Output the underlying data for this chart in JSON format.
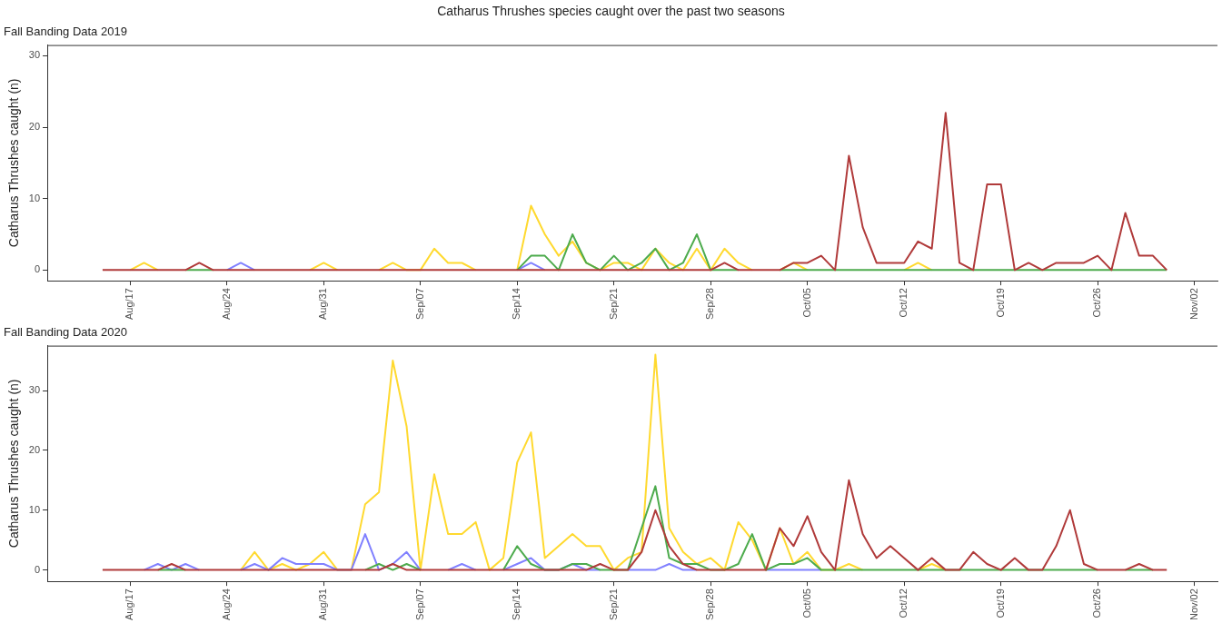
{
  "chart_data": [
    {
      "type": "line",
      "title": "Catharus Thrushes species caught over the past two seasons",
      "subtitle": "Fall Banding Data 2019",
      "ylabel": "Catharus Thrushes caught (n)",
      "x": [
        "2019-08-15",
        "2019-08-16",
        "2019-08-17",
        "2019-08-18",
        "2019-08-19",
        "2019-08-20",
        "2019-08-21",
        "2019-08-22",
        "2019-08-23",
        "2019-08-24",
        "2019-08-25",
        "2019-08-26",
        "2019-08-27",
        "2019-08-28",
        "2019-08-29",
        "2019-08-30",
        "2019-08-31",
        "2019-09-01",
        "2019-09-02",
        "2019-09-03",
        "2019-09-04",
        "2019-09-05",
        "2019-09-06",
        "2019-09-07",
        "2019-09-08",
        "2019-09-09",
        "2019-09-10",
        "2019-09-11",
        "2019-09-12",
        "2019-09-13",
        "2019-09-14",
        "2019-09-15",
        "2019-09-16",
        "2019-09-17",
        "2019-09-18",
        "2019-09-19",
        "2019-09-20",
        "2019-09-21",
        "2019-09-22",
        "2019-09-23",
        "2019-09-24",
        "2019-09-25",
        "2019-09-26",
        "2019-09-27",
        "2019-09-28",
        "2019-09-29",
        "2019-09-30",
        "2019-10-01",
        "2019-10-02",
        "2019-10-03",
        "2019-10-04",
        "2019-10-05",
        "2019-10-06",
        "2019-10-07",
        "2019-10-08",
        "2019-10-09",
        "2019-10-10",
        "2019-10-11",
        "2019-10-12",
        "2019-10-13",
        "2019-10-14",
        "2019-10-15",
        "2019-10-16",
        "2019-10-17",
        "2019-10-18",
        "2019-10-19",
        "2019-10-20",
        "2019-10-21",
        "2019-10-22",
        "2019-10-23",
        "2019-10-24",
        "2019-10-25",
        "2019-10-26",
        "2019-10-27",
        "2019-10-28",
        "2019-10-29",
        "2019-10-30",
        "2019-10-31"
      ],
      "xlim": [
        "2019-08-11",
        "2019-11-03T16:00"
      ],
      "xticks": [
        {
          "value": "2019-08-17",
          "label": "Aug/17"
        },
        {
          "value": "2019-08-24",
          "label": "Aug/24"
        },
        {
          "value": "2019-08-31",
          "label": "Aug/31"
        },
        {
          "value": "2019-09-07",
          "label": "Sep/07"
        },
        {
          "value": "2019-09-14",
          "label": "Sep/14"
        },
        {
          "value": "2019-09-21",
          "label": "Sep/21"
        },
        {
          "value": "2019-09-28",
          "label": "Sep/28"
        },
        {
          "value": "2019-10-05",
          "label": "Oct/05"
        },
        {
          "value": "2019-10-12",
          "label": "Oct/12"
        },
        {
          "value": "2019-10-19",
          "label": "Oct/19"
        },
        {
          "value": "2019-10-26",
          "label": "Oct/26"
        },
        {
          "value": "2019-11-02",
          "label": "Nov/02"
        }
      ],
      "ylim": [
        -1.5,
        31.5
      ],
      "yticks": [
        0,
        10,
        20,
        30
      ],
      "grid": false,
      "legend": false,
      "series": [
        {
          "color": "#ffd92f",
          "values": [
            null,
            null,
            0,
            1,
            0,
            null,
            null,
            null,
            null,
            null,
            null,
            null,
            null,
            null,
            null,
            0,
            1,
            0,
            null,
            null,
            0,
            1,
            0,
            0,
            3,
            1,
            1,
            0,
            null,
            null,
            0,
            9,
            5,
            2,
            4,
            1,
            0,
            1,
            1,
            0,
            3,
            1,
            0,
            3,
            0,
            3,
            1,
            0,
            null,
            0,
            1,
            0,
            null,
            null,
            null,
            null,
            null,
            null,
            0,
            1,
            0,
            null,
            null,
            null,
            null,
            null,
            null,
            null,
            null,
            null,
            null,
            null,
            null,
            null,
            null,
            null,
            null,
            null
          ]
        },
        {
          "color": "#8080ff",
          "values": [
            null,
            null,
            null,
            null,
            null,
            null,
            null,
            null,
            null,
            0,
            1,
            0,
            null,
            null,
            null,
            null,
            null,
            null,
            null,
            null,
            null,
            null,
            null,
            null,
            null,
            null,
            null,
            null,
            null,
            null,
            0,
            1,
            0,
            null,
            null,
            null,
            null,
            null,
            null,
            null,
            null,
            null,
            null,
            null,
            null,
            null,
            null,
            null,
            null,
            null,
            null,
            null,
            null,
            null,
            null,
            null,
            null,
            null,
            null,
            null,
            null,
            null,
            null,
            null,
            null,
            null,
            null,
            null,
            null,
            null,
            null,
            null,
            null,
            null,
            null,
            null,
            null,
            null
          ]
        },
        {
          "color": "#4dab4d",
          "values": [
            null,
            null,
            null,
            null,
            null,
            null,
            0,
            0,
            0,
            null,
            null,
            null,
            null,
            null,
            null,
            null,
            null,
            null,
            null,
            null,
            null,
            null,
            null,
            null,
            null,
            null,
            null,
            null,
            null,
            null,
            0,
            2,
            2,
            0,
            5,
            1,
            0,
            2,
            0,
            1,
            3,
            0,
            1,
            5,
            0,
            0,
            0,
            null,
            null,
            0,
            0,
            0,
            0,
            0,
            0,
            0,
            0,
            0,
            0,
            0,
            0,
            0,
            0,
            0,
            0,
            0,
            0,
            0,
            0,
            0,
            0,
            0,
            0,
            0,
            0,
            0,
            0,
            0
          ]
        },
        {
          "color": "#b03a3a",
          "values": [
            0,
            0,
            0,
            0,
            0,
            0,
            0,
            1,
            0,
            0,
            0,
            0,
            0,
            0,
            0,
            0,
            0,
            0,
            0,
            0,
            0,
            0,
            0,
            0,
            0,
            0,
            0,
            0,
            0,
            0,
            0,
            0,
            0,
            0,
            0,
            0,
            0,
            0,
            0,
            0,
            0,
            0,
            0,
            0,
            0,
            1,
            0,
            0,
            0,
            0,
            1,
            1,
            2,
            0,
            16,
            6,
            1,
            1,
            1,
            4,
            3,
            22,
            1,
            0,
            12,
            12,
            0,
            1,
            0,
            1,
            1,
            1,
            2,
            0,
            8,
            2,
            2,
            0
          ]
        }
      ]
    },
    {
      "type": "line",
      "subtitle": "Fall Banding Data 2020",
      "ylabel": "Catharus Thrushes caught (n)",
      "x": [
        "2020-08-15",
        "2020-08-16",
        "2020-08-17",
        "2020-08-18",
        "2020-08-19",
        "2020-08-20",
        "2020-08-21",
        "2020-08-22",
        "2020-08-23",
        "2020-08-24",
        "2020-08-25",
        "2020-08-26",
        "2020-08-27",
        "2020-08-28",
        "2020-08-29",
        "2020-08-30",
        "2020-08-31",
        "2020-09-01",
        "2020-09-02",
        "2020-09-03",
        "2020-09-04",
        "2020-09-05",
        "2020-09-06",
        "2020-09-07",
        "2020-09-08",
        "2020-09-09",
        "2020-09-10",
        "2020-09-11",
        "2020-09-12",
        "2020-09-13",
        "2020-09-14",
        "2020-09-15",
        "2020-09-16",
        "2020-09-17",
        "2020-09-18",
        "2020-09-19",
        "2020-09-20",
        "2020-09-21",
        "2020-09-22",
        "2020-09-23",
        "2020-09-24",
        "2020-09-25",
        "2020-09-26",
        "2020-09-27",
        "2020-09-28",
        "2020-09-29",
        "2020-09-30",
        "2020-10-01",
        "2020-10-02",
        "2020-10-03",
        "2020-10-04",
        "2020-10-05",
        "2020-10-06",
        "2020-10-07",
        "2020-10-08",
        "2020-10-09",
        "2020-10-10",
        "2020-10-11",
        "2020-10-12",
        "2020-10-13",
        "2020-10-14",
        "2020-10-15",
        "2020-10-16",
        "2020-10-17",
        "2020-10-18",
        "2020-10-19",
        "2020-10-20",
        "2020-10-21",
        "2020-10-22",
        "2020-10-23",
        "2020-10-24",
        "2020-10-25",
        "2020-10-26",
        "2020-10-27",
        "2020-10-28",
        "2020-10-29",
        "2020-10-30",
        "2020-10-31"
      ],
      "xlim": [
        "2020-08-11",
        "2020-11-03T16:00"
      ],
      "xticks": [
        {
          "value": "2020-08-17",
          "label": "Aug/17"
        },
        {
          "value": "2020-08-24",
          "label": "Aug/24"
        },
        {
          "value": "2020-08-31",
          "label": "Aug/31"
        },
        {
          "value": "2020-09-07",
          "label": "Sep/07"
        },
        {
          "value": "2020-09-14",
          "label": "Sep/14"
        },
        {
          "value": "2020-09-21",
          "label": "Sep/21"
        },
        {
          "value": "2020-09-28",
          "label": "Sep/28"
        },
        {
          "value": "2020-10-05",
          "label": "Oct/05"
        },
        {
          "value": "2020-10-12",
          "label": "Oct/12"
        },
        {
          "value": "2020-10-19",
          "label": "Oct/19"
        },
        {
          "value": "2020-10-26",
          "label": "Oct/26"
        },
        {
          "value": "2020-11-02",
          "label": "Nov/02"
        }
      ],
      "ylim": [
        -1.9,
        37.5
      ],
      "yticks": [
        0,
        10,
        20,
        30
      ],
      "grid": false,
      "legend": false,
      "series": [
        {
          "color": "#ffd92f",
          "values": [
            null,
            null,
            null,
            null,
            null,
            null,
            null,
            null,
            null,
            null,
            0,
            3,
            0,
            1,
            0,
            1,
            3,
            0,
            0,
            11,
            13,
            35,
            24,
            0,
            16,
            6,
            6,
            8,
            0,
            2,
            18,
            23,
            2,
            4,
            6,
            4,
            4,
            0,
            2,
            3,
            36,
            7,
            3,
            1,
            2,
            0,
            8,
            5,
            0,
            7,
            1,
            3,
            0,
            0,
            1,
            0,
            null,
            null,
            null,
            0,
            1,
            0,
            null,
            null,
            null,
            null,
            null,
            null,
            null,
            null,
            null,
            null,
            null,
            null,
            null,
            null,
            null,
            null
          ]
        },
        {
          "color": "#8080ff",
          "values": [
            null,
            null,
            null,
            0,
            1,
            0,
            1,
            0,
            null,
            null,
            0,
            1,
            0,
            2,
            1,
            1,
            1,
            0,
            0,
            6,
            0,
            1,
            3,
            0,
            null,
            0,
            1,
            0,
            null,
            0,
            1,
            2,
            0,
            0,
            1,
            0,
            0,
            null,
            0,
            0,
            0,
            1,
            0,
            0,
            null,
            null,
            null,
            null,
            0,
            0,
            0,
            0,
            0,
            null,
            null,
            null,
            null,
            null,
            null,
            null,
            null,
            null,
            null,
            null,
            null,
            null,
            null,
            null,
            null,
            null,
            null,
            null,
            null,
            null,
            null,
            null,
            null,
            null
          ]
        },
        {
          "color": "#4dab4d",
          "values": [
            null,
            null,
            null,
            null,
            0,
            0,
            0,
            null,
            null,
            null,
            null,
            null,
            null,
            null,
            null,
            null,
            null,
            null,
            null,
            0,
            1,
            0,
            1,
            0,
            null,
            null,
            null,
            null,
            null,
            0,
            4,
            1,
            0,
            0,
            1,
            1,
            0,
            0,
            0,
            7,
            14,
            2,
            1,
            1,
            0,
            0,
            1,
            6,
            0,
            1,
            1,
            2,
            0,
            0,
            0,
            0,
            0,
            0,
            0,
            0,
            0,
            0,
            0,
            0,
            0,
            0,
            0,
            0,
            0,
            0,
            0,
            0,
            0,
            null,
            0,
            0,
            0,
            null
          ]
        },
        {
          "color": "#b03a3a",
          "values": [
            0,
            0,
            0,
            0,
            0,
            1,
            0,
            0,
            0,
            0,
            0,
            0,
            0,
            0,
            0,
            0,
            0,
            0,
            0,
            0,
            0,
            1,
            0,
            0,
            0,
            0,
            0,
            0,
            0,
            0,
            0,
            0,
            0,
            0,
            0,
            0,
            1,
            0,
            0,
            3,
            10,
            4,
            1,
            0,
            0,
            0,
            0,
            0,
            0,
            7,
            4,
            9,
            3,
            0,
            15,
            6,
            2,
            4,
            2,
            0,
            2,
            0,
            0,
            3,
            1,
            0,
            2,
            0,
            0,
            4,
            10,
            1,
            0,
            0,
            0,
            1,
            0,
            0
          ]
        }
      ]
    }
  ]
}
